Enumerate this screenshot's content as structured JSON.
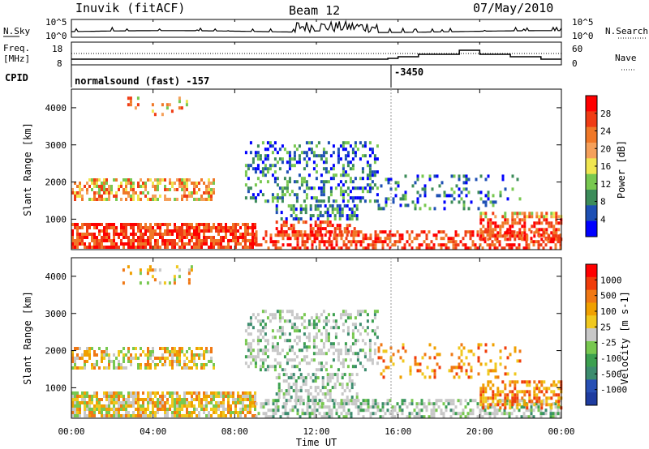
{
  "header": {
    "station": "Inuvik (fitACF)",
    "beam": "Beam 12",
    "date": "07/May/2010"
  },
  "noise_panel": {
    "left_label": "N.Sky",
    "right_label": "N.Search",
    "left_ticks": [
      "10^5",
      "10^0"
    ],
    "right_ticks": [
      "10^5",
      "10^0"
    ]
  },
  "freq_panel": {
    "left_label_line1": "Freq.",
    "left_label_line2": "[MHz]",
    "right_label": "Nave",
    "left_ticks": [
      "18",
      "8"
    ],
    "right_ticks": [
      "60",
      "0"
    ]
  },
  "cpid_panel": {
    "label": "CPID",
    "mode_text": "normalsound (fast) -157",
    "change_text": "-3450"
  },
  "x_axis": {
    "label": "Time UT",
    "ticks": [
      "00:00",
      "04:00",
      "08:00",
      "12:00",
      "16:00",
      "20:00",
      "00:00"
    ]
  },
  "power_panel": {
    "ylabel": "Slant Range [km]",
    "yticks": [
      "1000",
      "2000",
      "3000",
      "4000"
    ],
    "colorbar_label": "Power [dB]",
    "colorbar_ticks": [
      "4",
      "8",
      "12",
      "16",
      "20",
      "24",
      "28"
    ],
    "colors": [
      "#0000ff",
      "#1e50b4",
      "#3c8c5a",
      "#78c850",
      "#f0e650",
      "#f5a05a",
      "#f07828",
      "#f03c14",
      "#ff0000"
    ]
  },
  "velocity_panel": {
    "ylabel": "Slant Range [km]",
    "yticks": [
      "1000",
      "2000",
      "3000",
      "4000"
    ],
    "colorbar_label": "Velocity [m s-1]",
    "colorbar_ticks": [
      "1000",
      "500",
      "100",
      "25",
      "-25",
      "-100",
      "-500",
      "-1000"
    ],
    "colors": [
      "#1e3ca0",
      "#2850b4",
      "#3c8c6e",
      "#3ca050",
      "#78c850",
      "#c8c8c8",
      "#f0c81e",
      "#f0a000",
      "#f07814",
      "#f03c0a",
      "#ff0000"
    ]
  },
  "chart_data": {
    "type": "heatmap",
    "x_range_hours": [
      0,
      24
    ],
    "y_range_km": [
      180,
      4500
    ],
    "grid": false,
    "panels": [
      "Power",
      "Velocity"
    ]
  }
}
